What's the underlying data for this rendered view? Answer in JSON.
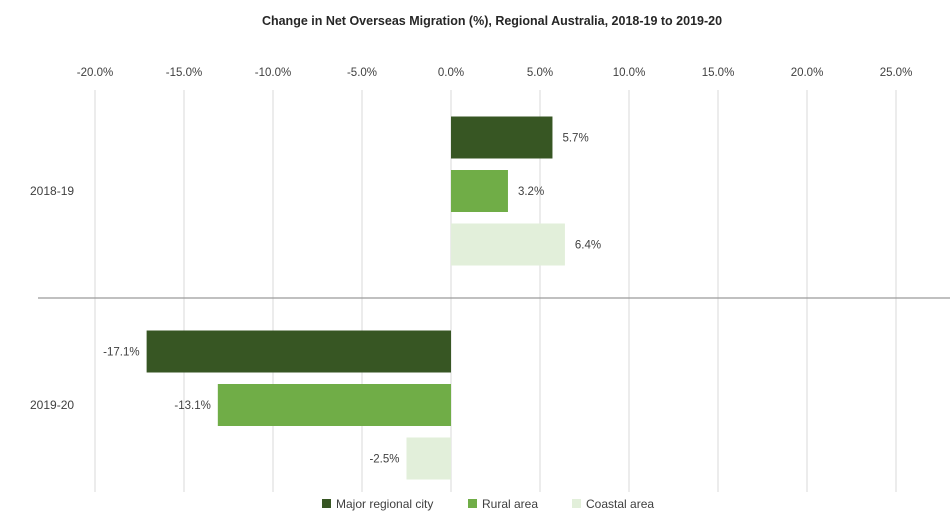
{
  "chart_data": {
    "type": "bar",
    "orientation": "horizontal",
    "title": "Change in Net Overseas Migration (%), Regional Australia, 2018-19 to 2019-20",
    "xlabel": "",
    "ylabel": "",
    "categories": [
      "2018-19",
      "2019-20"
    ],
    "series": [
      {
        "name": "Major regional city",
        "color": "#375623",
        "values": [
          5.7,
          -17.1
        ],
        "labels": [
          "5.7%",
          "-17.1%"
        ]
      },
      {
        "name": "Rural area",
        "color": "#70ad47",
        "values": [
          3.2,
          -13.1
        ],
        "labels": [
          "3.2%",
          "-13.1%"
        ]
      },
      {
        "name": "Coastal area",
        "color": "#e2efda",
        "values": [
          6.4,
          -2.5
        ],
        "labels": [
          "6.4%",
          "-2.5%"
        ]
      }
    ],
    "xlim": [
      -20,
      25
    ],
    "tick_values": [
      -20,
      -15,
      -10,
      -5,
      0,
      5,
      10,
      15,
      20,
      25
    ],
    "tick_labels": [
      "-20.0%",
      "-15.0%",
      "-10.0%",
      "-5.0%",
      "0.0%",
      "5.0%",
      "10.0%",
      "15.0%",
      "20.0%",
      "25.0%"
    ],
    "axis_position": "top",
    "grid": true,
    "legend_position": "bottom"
  }
}
